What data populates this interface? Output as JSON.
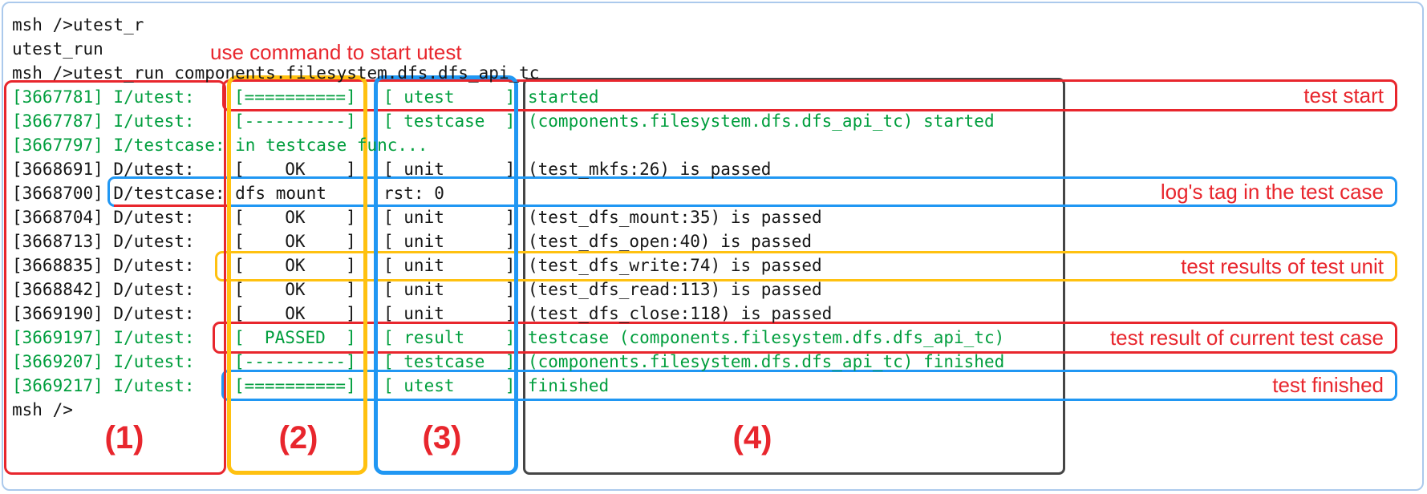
{
  "terminal": {
    "lines": [
      {
        "color": "dark",
        "segments": [
          {
            "col": "c1",
            "text": "msh />utest_r"
          }
        ]
      },
      {
        "color": "dark",
        "segments": [
          {
            "col": "c1",
            "text": "utest_run"
          }
        ]
      },
      {
        "color": "dark",
        "segments": [
          {
            "col": "c1",
            "text": "msh />utest_run components.filesystem.dfs.dfs_api_tc"
          }
        ]
      },
      {
        "color": "green",
        "segments": [
          {
            "col": "c1",
            "text": "[3667781] I/utest:"
          },
          {
            "col": "c2",
            "text": "[==========]"
          },
          {
            "col": "c3",
            "text": "[ utest     ]"
          },
          {
            "col": "c4",
            "text": "started"
          }
        ]
      },
      {
        "color": "green",
        "segments": [
          {
            "col": "c1",
            "text": "[3667787] I/utest:"
          },
          {
            "col": "c2",
            "text": "[----------]"
          },
          {
            "col": "c3",
            "text": "[ testcase  ]"
          },
          {
            "col": "c4",
            "text": "(components.filesystem.dfs.dfs_api_tc) started"
          }
        ]
      },
      {
        "color": "green",
        "segments": [
          {
            "col": "c1",
            "text": "[3667797] I/testcase: in testcase func..."
          }
        ]
      },
      {
        "color": "dark",
        "segments": [
          {
            "col": "c1",
            "text": "[3668691] D/utest:"
          },
          {
            "col": "c2",
            "text": "[    OK    ]"
          },
          {
            "col": "c3",
            "text": "[ unit      ]"
          },
          {
            "col": "c4",
            "text": "(test_mkfs:26) is passed"
          }
        ]
      },
      {
        "color": "dark",
        "segments": [
          {
            "col": "c1",
            "text": "[3668700] D/testcase: dfs mount"
          },
          {
            "col": "c3",
            "text": "rst: 0"
          }
        ]
      },
      {
        "color": "dark",
        "segments": [
          {
            "col": "c1",
            "text": "[3668704] D/utest:"
          },
          {
            "col": "c2",
            "text": "[    OK    ]"
          },
          {
            "col": "c3",
            "text": "[ unit      ]"
          },
          {
            "col": "c4",
            "text": "(test_dfs_mount:35) is passed"
          }
        ]
      },
      {
        "color": "dark",
        "segments": [
          {
            "col": "c1",
            "text": "[3668713] D/utest:"
          },
          {
            "col": "c2",
            "text": "[    OK    ]"
          },
          {
            "col": "c3",
            "text": "[ unit      ]"
          },
          {
            "col": "c4",
            "text": "(test_dfs_open:40) is passed"
          }
        ]
      },
      {
        "color": "dark",
        "segments": [
          {
            "col": "c1",
            "text": "[3668835] D/utest:"
          },
          {
            "col": "c2",
            "text": "[    OK    ]"
          },
          {
            "col": "c3",
            "text": "[ unit      ]"
          },
          {
            "col": "c4",
            "text": "(test_dfs_write:74) is passed"
          }
        ]
      },
      {
        "color": "dark",
        "segments": [
          {
            "col": "c1",
            "text": "[3668842] D/utest:"
          },
          {
            "col": "c2",
            "text": "[    OK    ]"
          },
          {
            "col": "c3",
            "text": "[ unit      ]"
          },
          {
            "col": "c4",
            "text": "(test_dfs_read:113) is passed"
          }
        ]
      },
      {
        "color": "dark",
        "segments": [
          {
            "col": "c1",
            "text": "[3669190] D/utest:"
          },
          {
            "col": "c2",
            "text": "[    OK    ]"
          },
          {
            "col": "c3",
            "text": "[ unit      ]"
          },
          {
            "col": "c4",
            "text": "(test_dfs_close:118) is passed"
          }
        ]
      },
      {
        "color": "green",
        "segments": [
          {
            "col": "c1",
            "text": "[3669197] I/utest:"
          },
          {
            "col": "c2",
            "text": "[  PASSED  ]"
          },
          {
            "col": "c3",
            "text": "[ result    ]"
          },
          {
            "col": "c4",
            "text": "testcase (components.filesystem.dfs.dfs_api_tc)"
          }
        ]
      },
      {
        "color": "green",
        "segments": [
          {
            "col": "c1",
            "text": "[3669207] I/utest:"
          },
          {
            "col": "c2",
            "text": "[----------]"
          },
          {
            "col": "c3",
            "text": "[ testcase  ]"
          },
          {
            "col": "c4",
            "text": "(components.filesystem.dfs.dfs_api_tc) finished"
          }
        ]
      },
      {
        "color": "green",
        "segments": [
          {
            "col": "c1",
            "text": "[3669217] I/utest:"
          },
          {
            "col": "c2",
            "text": "[==========]"
          },
          {
            "col": "c3",
            "text": "[ utest     ]"
          },
          {
            "col": "c4",
            "text": "finished"
          }
        ]
      },
      {
        "color": "dark",
        "segments": [
          {
            "col": "c1",
            "text": "msh />"
          }
        ]
      }
    ]
  },
  "annotations": {
    "note": "use command to start utest",
    "row_labels": [
      {
        "text": "test start"
      },
      {
        "text": "log's tag in the test case"
      },
      {
        "text": "test results of test unit"
      },
      {
        "text": "test result of current test case"
      },
      {
        "text": "test finished"
      }
    ],
    "column_labels": [
      "(1)",
      "(2)",
      "(3)",
      "(4)"
    ]
  },
  "colors": {
    "log_green": "#009e3d",
    "log_dark": "#161616",
    "annotation_red": "#e8262d",
    "annotation_orange": "#ffc110",
    "annotation_blue": "#2097f3",
    "message_box_border": "#454545",
    "outer_frame": "#abc9ec"
  }
}
